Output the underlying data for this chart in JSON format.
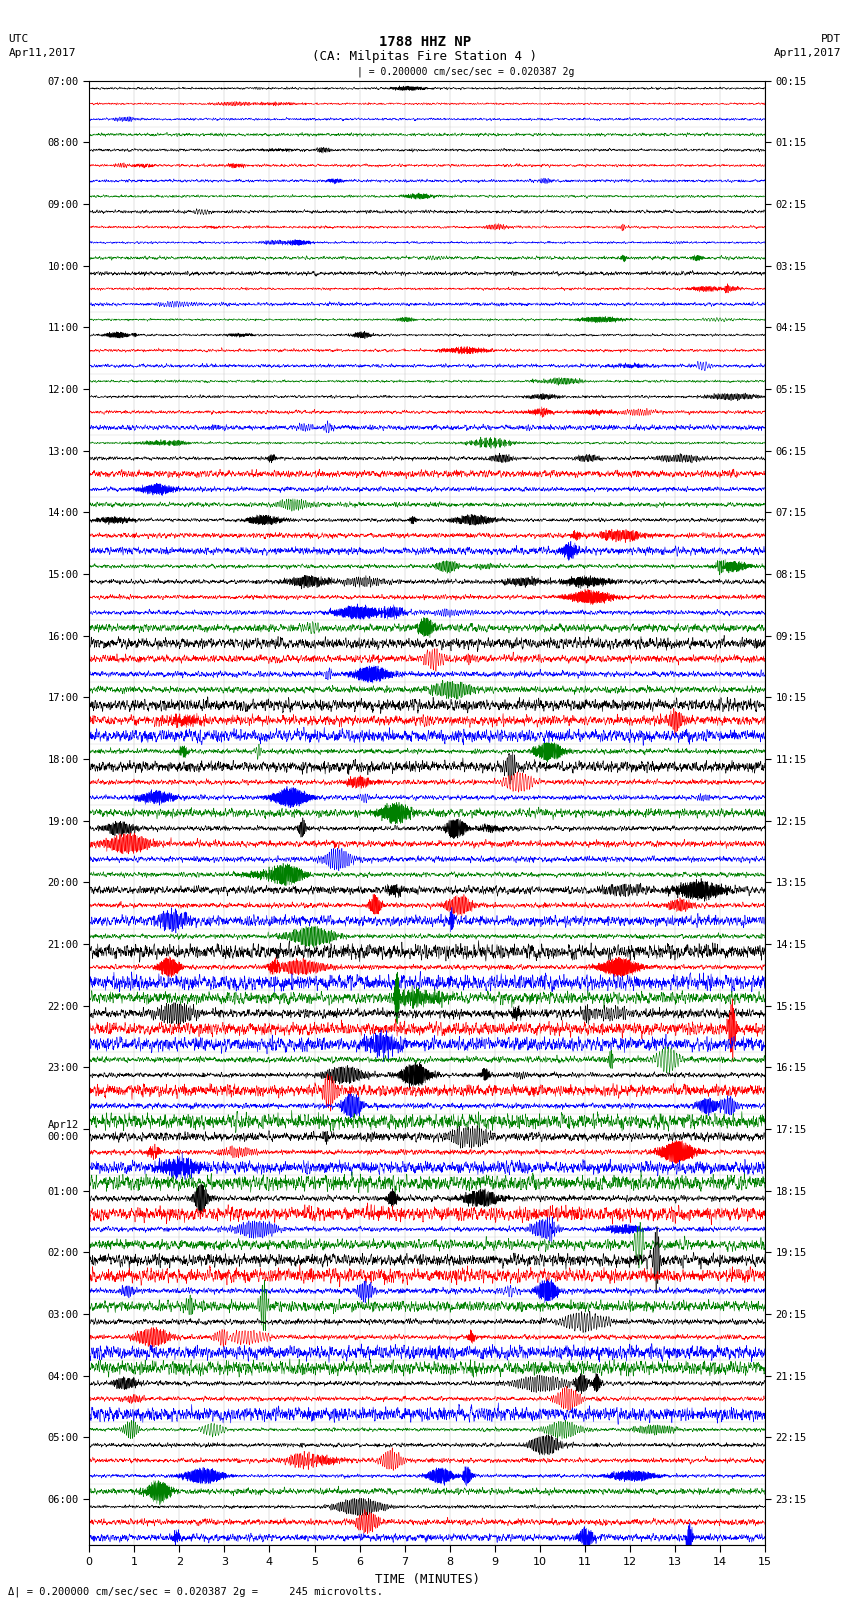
{
  "title_line1": "1788 HHZ NP",
  "title_line2": "(CA: Milpitas Fire Station 4 )",
  "left_header1": "UTC",
  "left_header2": "Apr11,2017",
  "right_header1": "PDT",
  "right_header2": "Apr11,2017",
  "scale_bar_text": "| = 0.200000 cm/sec/sec = 0.020387 2g",
  "bottom_note": "= 0.200000 cm/sec/sec = 0.020387 2g =     245 microvolts.",
  "xlabel": "TIME (MINUTES)",
  "xmin": 0,
  "xmax": 15,
  "xticks": [
    0,
    1,
    2,
    3,
    4,
    5,
    6,
    7,
    8,
    9,
    10,
    11,
    12,
    13,
    14,
    15
  ],
  "trace_colors": [
    "black",
    "red",
    "blue",
    "green"
  ],
  "trace_linewidth": 0.4,
  "background_color": "#ffffff",
  "left_times": [
    "07:00",
    "",
    "",
    "",
    "08:00",
    "",
    "",
    "",
    "09:00",
    "",
    "",
    "",
    "10:00",
    "",
    "",
    "",
    "11:00",
    "",
    "",
    "",
    "12:00",
    "",
    "",
    "",
    "13:00",
    "",
    "",
    "",
    "14:00",
    "",
    "",
    "",
    "15:00",
    "",
    "",
    "",
    "16:00",
    "",
    "",
    "",
    "17:00",
    "",
    "",
    "",
    "18:00",
    "",
    "",
    "",
    "19:00",
    "",
    "",
    "",
    "20:00",
    "",
    "",
    "",
    "21:00",
    "",
    "",
    "",
    "22:00",
    "",
    "",
    "",
    "23:00",
    "",
    "",
    "",
    "Apr12\n00:00",
    "",
    "",
    "",
    "01:00",
    "",
    "",
    "",
    "02:00",
    "",
    "",
    "",
    "03:00",
    "",
    "",
    "",
    "04:00",
    "",
    "",
    "",
    "05:00",
    "",
    "",
    "",
    "06:00",
    "",
    ""
  ],
  "right_times": [
    "00:15",
    "",
    "",
    "",
    "01:15",
    "",
    "",
    "",
    "02:15",
    "",
    "",
    "",
    "03:15",
    "",
    "",
    "",
    "04:15",
    "",
    "",
    "",
    "05:15",
    "",
    "",
    "",
    "06:15",
    "",
    "",
    "",
    "07:15",
    "",
    "",
    "",
    "08:15",
    "",
    "",
    "",
    "09:15",
    "",
    "",
    "",
    "10:15",
    "",
    "",
    "",
    "11:15",
    "",
    "",
    "",
    "12:15",
    "",
    "",
    "",
    "13:15",
    "",
    "",
    "",
    "14:15",
    "",
    "",
    "",
    "15:15",
    "",
    "",
    "",
    "16:15",
    "",
    "",
    "",
    "17:15",
    "",
    "",
    "",
    "18:15",
    "",
    "",
    "",
    "19:15",
    "",
    "",
    "",
    "20:15",
    "",
    "",
    "",
    "21:15",
    "",
    "",
    "",
    "22:15",
    "",
    "",
    "",
    "23:15",
    "",
    ""
  ],
  "figsize": [
    8.5,
    16.13
  ],
  "dpi": 100
}
